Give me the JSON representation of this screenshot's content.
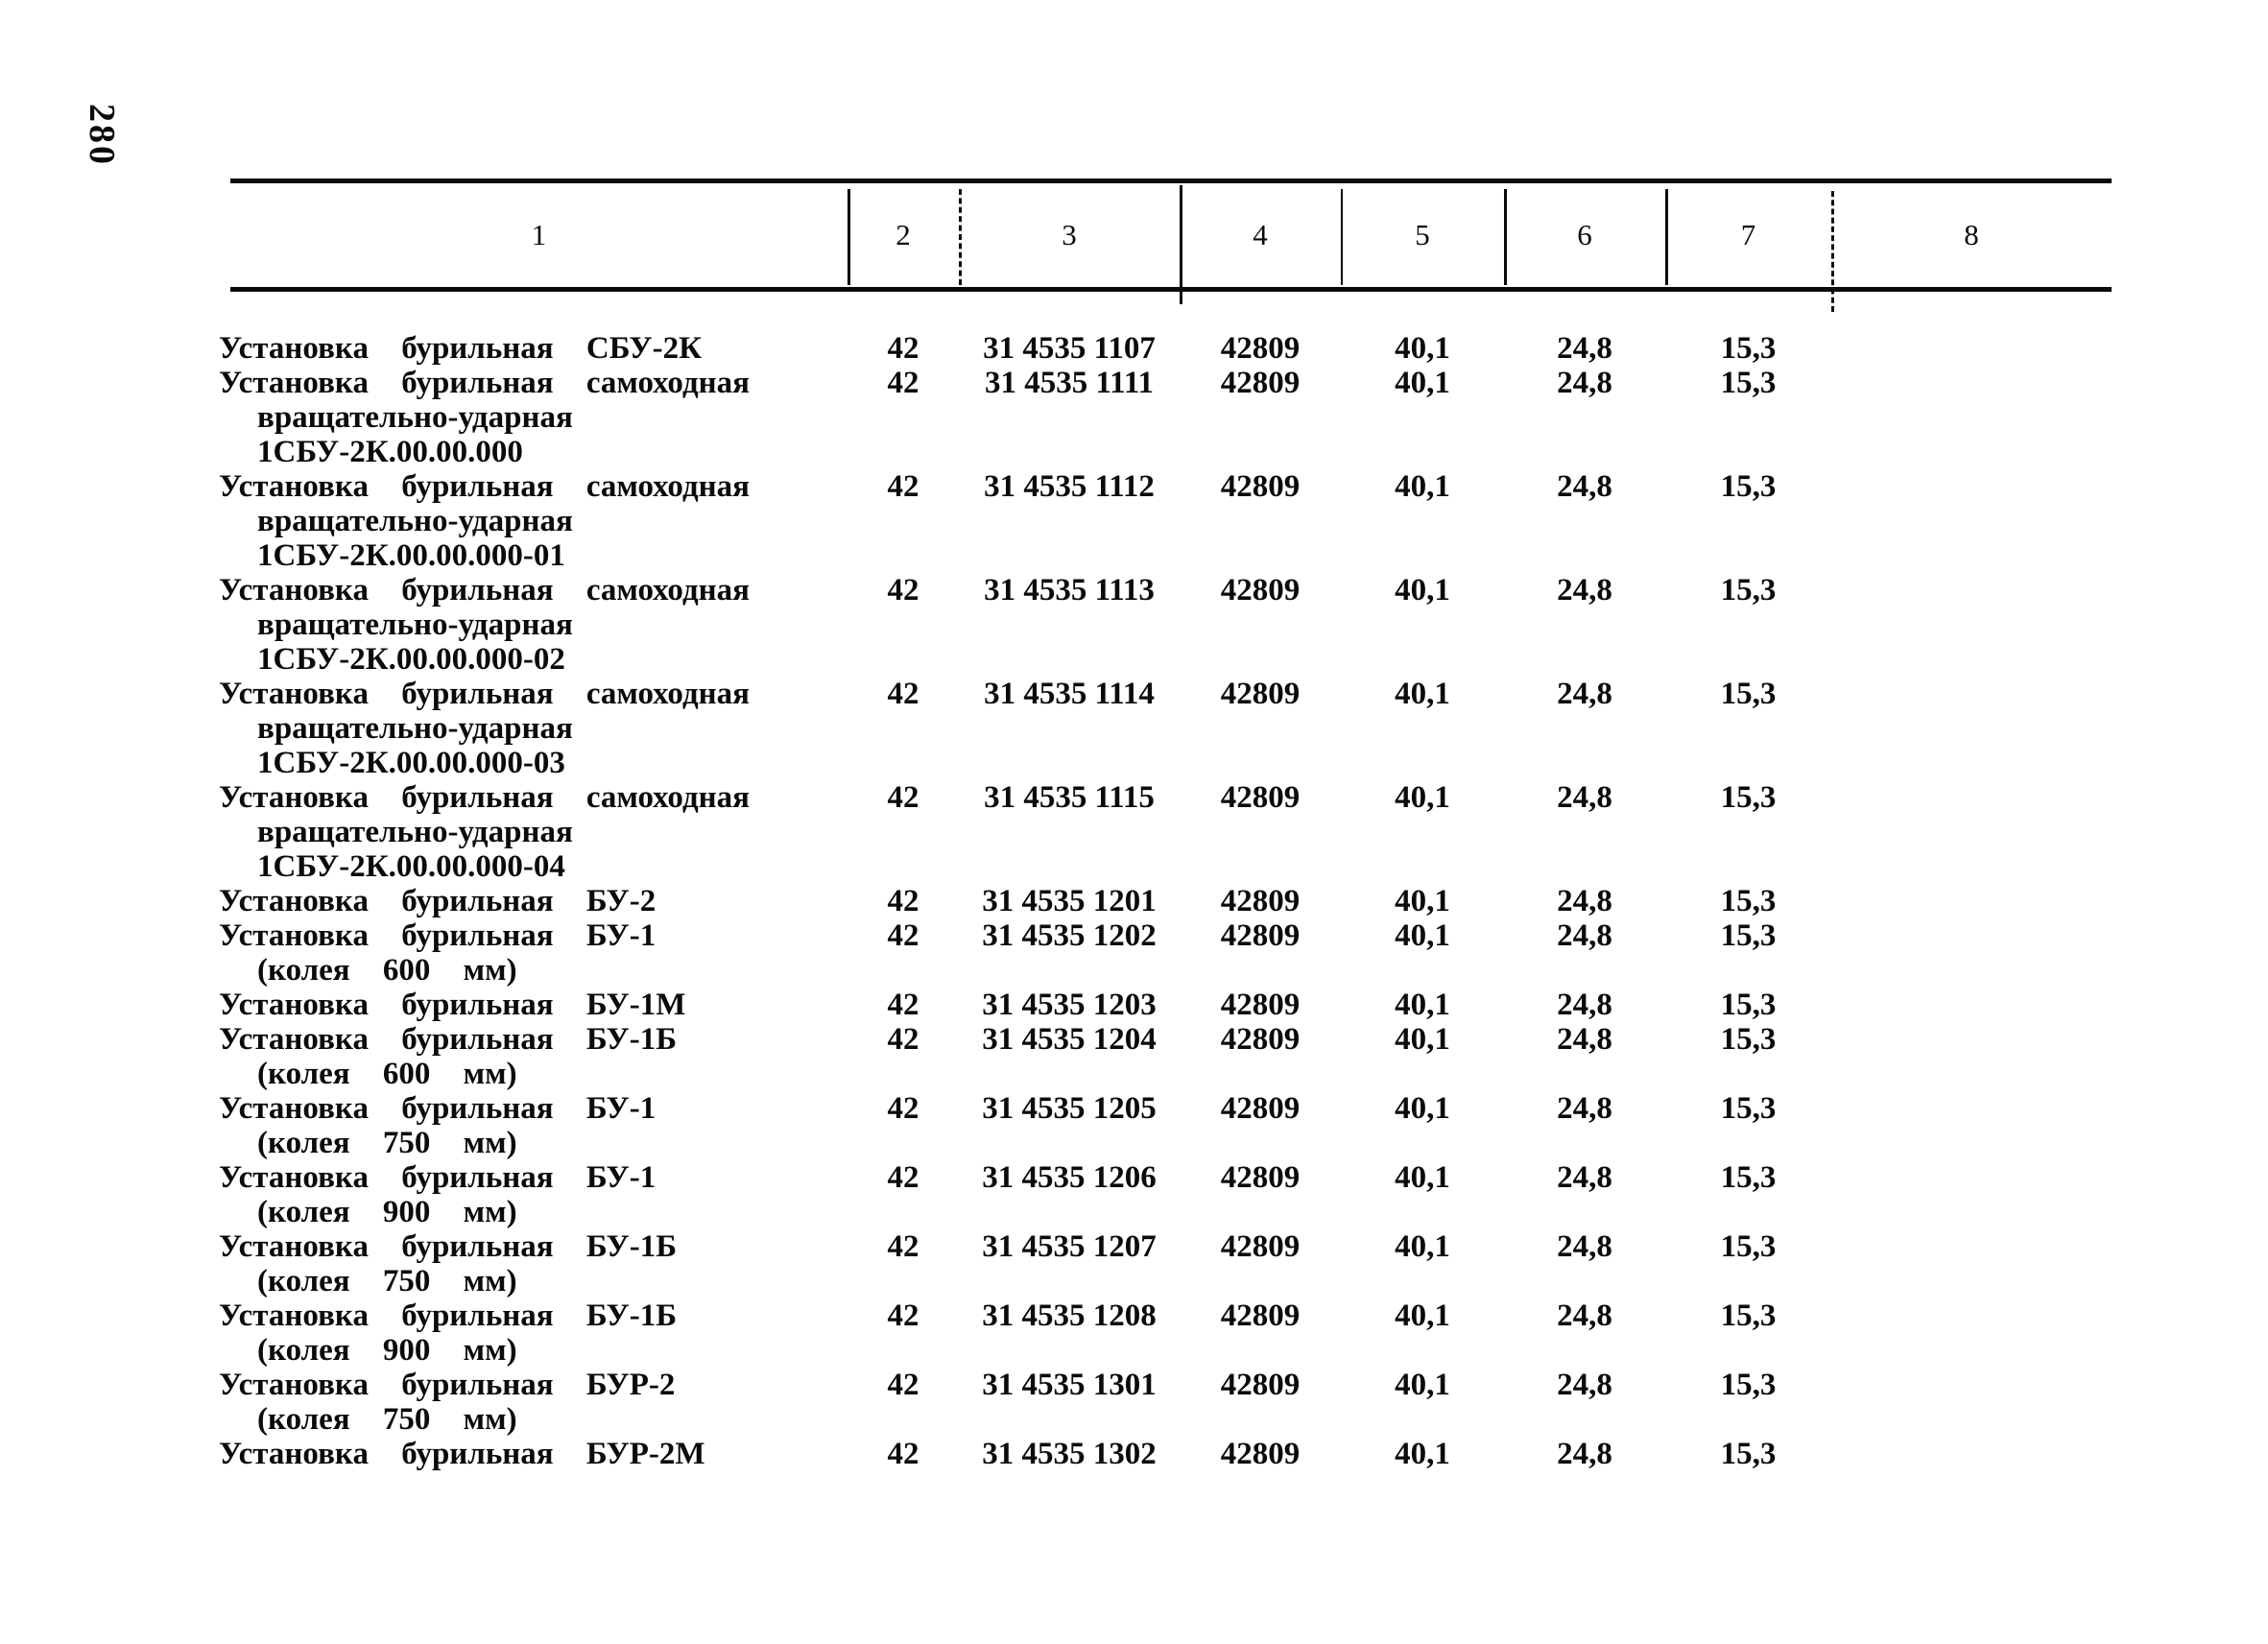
{
  "page": {
    "number": "280"
  },
  "table": {
    "column_headers": [
      "1",
      "2",
      "3",
      "4",
      "5",
      "6",
      "7",
      "8"
    ],
    "rows": [
      {
        "name": "Установка бурильная СБУ-2К",
        "sub_lines": [],
        "col2": "42",
        "col3": "31 4535 1107",
        "col4": "42809",
        "col5": "40,1",
        "col6": "24,8",
        "col7": "15,3",
        "col8": ""
      },
      {
        "name": "Установка бурильная самоходная",
        "sub_lines": [
          "вращательно-ударная",
          "1СБУ-2К.00.00.000"
        ],
        "col2": "42",
        "col3": "31 4535 1111",
        "col4": "42809",
        "col5": "40,1",
        "col6": "24,8",
        "col7": "15,3",
        "col8": ""
      },
      {
        "name": "Установка бурильная самоходная",
        "sub_lines": [
          "вращательно-ударная",
          "1СБУ-2К.00.00.000-01"
        ],
        "col2": "42",
        "col3": "31 4535 1112",
        "col4": "42809",
        "col5": "40,1",
        "col6": "24,8",
        "col7": "15,3",
        "col8": ""
      },
      {
        "name": "Установка бурильная самоходная",
        "sub_lines": [
          "вращательно-ударная",
          "1СБУ-2К.00.00.000-02"
        ],
        "col2": "42",
        "col3": "31 4535 1113",
        "col4": "42809",
        "col5": "40,1",
        "col6": "24,8",
        "col7": "15,3",
        "col8": ""
      },
      {
        "name": "Установка бурильная самоходная",
        "sub_lines": [
          "вращательно-ударная",
          "1СБУ-2К.00.00.000-03"
        ],
        "col2": "42",
        "col3": "31 4535 1114",
        "col4": "42809",
        "col5": "40,1",
        "col6": "24,8",
        "col7": "15,3",
        "col8": ""
      },
      {
        "name": "Установка бурильная самоходная",
        "sub_lines": [
          "вращательно-ударная",
          "1СБУ-2К.00.00.000-04"
        ],
        "col2": "42",
        "col3": "31 4535 1115",
        "col4": "42809",
        "col5": "40,1",
        "col6": "24,8",
        "col7": "15,3",
        "col8": ""
      },
      {
        "name": "Установка бурильная БУ-2",
        "sub_lines": [],
        "col2": "42",
        "col3": "31 4535 1201",
        "col4": "42809",
        "col5": "40,1",
        "col6": "24,8",
        "col7": "15,3",
        "col8": ""
      },
      {
        "name": "Установка бурильная БУ-1",
        "sub_lines": [
          "(колея 600 мм)"
        ],
        "col2": "42",
        "col3": "31 4535 1202",
        "col4": "42809",
        "col5": "40,1",
        "col6": "24,8",
        "col7": "15,3",
        "col8": ""
      },
      {
        "name": "Установка бурильная БУ-1М",
        "sub_lines": [],
        "col2": "42",
        "col3": "31 4535 1203",
        "col4": "42809",
        "col5": "40,1",
        "col6": "24,8",
        "col7": "15,3",
        "col8": ""
      },
      {
        "name": "Установка бурильная БУ-1Б",
        "sub_lines": [
          "(колея 600 мм)"
        ],
        "col2": "42",
        "col3": "31 4535 1204",
        "col4": "42809",
        "col5": "40,1",
        "col6": "24,8",
        "col7": "15,3",
        "col8": ""
      },
      {
        "name": "Установка бурильная БУ-1",
        "sub_lines": [
          "(колея 750 мм)"
        ],
        "col2": "42",
        "col3": "31 4535 1205",
        "col4": "42809",
        "col5": "40,1",
        "col6": "24,8",
        "col7": "15,3",
        "col8": ""
      },
      {
        "name": "Установка бурильная БУ-1",
        "sub_lines": [
          "(колея 900 мм)"
        ],
        "col2": "42",
        "col3": "31 4535 1206",
        "col4": "42809",
        "col5": "40,1",
        "col6": "24,8",
        "col7": "15,3",
        "col8": ""
      },
      {
        "name": "Установка бурильная БУ-1Б",
        "sub_lines": [
          "(колея 750 мм)"
        ],
        "col2": "42",
        "col3": "31 4535 1207",
        "col4": "42809",
        "col5": "40,1",
        "col6": "24,8",
        "col7": "15,3",
        "col8": ""
      },
      {
        "name": "Установка бурильная БУ-1Б",
        "sub_lines": [
          "(колея 900 мм)"
        ],
        "col2": "42",
        "col3": "31 4535 1208",
        "col4": "42809",
        "col5": "40,1",
        "col6": "24,8",
        "col7": "15,3",
        "col8": ""
      },
      {
        "name": "Установка бурильная БУР-2",
        "sub_lines": [
          "(колея 750 мм)"
        ],
        "col2": "42",
        "col3": "31 4535 1301",
        "col4": "42809",
        "col5": "40,1",
        "col6": "24,8",
        "col7": "15,3",
        "col8": ""
      },
      {
        "name": "Установка бурильная БУР-2М",
        "sub_lines": [],
        "col2": "42",
        "col3": "31 4535 1302",
        "col4": "42809",
        "col5": "40,1",
        "col6": "24,8",
        "col7": "15,3",
        "col8": ""
      }
    ]
  }
}
